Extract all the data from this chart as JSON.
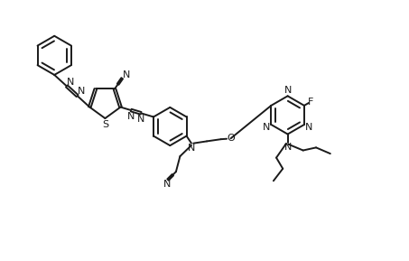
{
  "bg_color": "#ffffff",
  "line_color": "#1a1a1a",
  "line_width": 1.4,
  "figsize": [
    4.53,
    2.89
  ],
  "dpi": 100,
  "xlim": [
    0,
    10
  ],
  "ylim": [
    0,
    6.4
  ]
}
